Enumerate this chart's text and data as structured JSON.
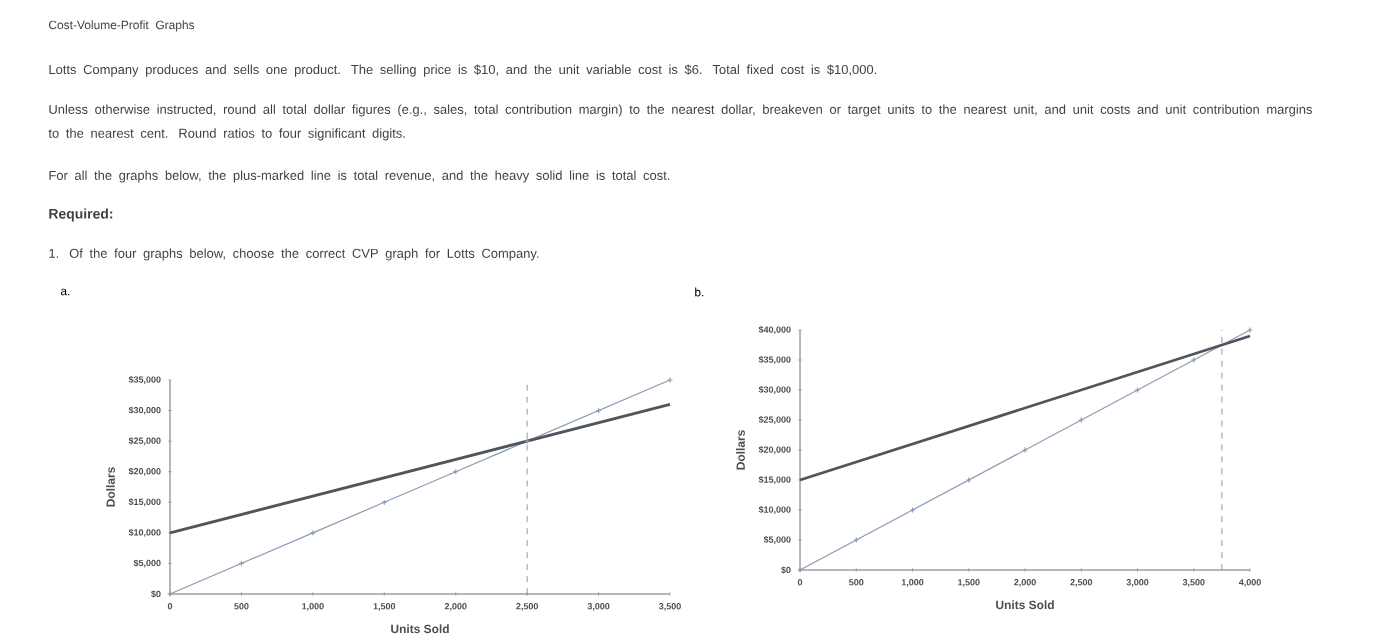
{
  "chart_data": [
    {
      "type": "line",
      "title": "a.",
      "xlabel": "Units Sold",
      "ylabel": "Dollars",
      "annotations": [
        "Cost-Volume-Profit Graphs",
        "Lotts Company produces and sells one product. The selling price is $10, and the unit variable cost is $6. Total fixed cost is $10,000.",
        "Unless otherwise instructed, round all total dollar figures (e.g., sales, total contribution margin) to the nearest dollar, breakeven or target units to the nearest unit, and unit costs and unit contribution margins to the nearest cent. Round ratios to four significant digits.",
        "For all the graphs below, the plus-marked line is total revenue, and the heavy solid line is total cost.",
        "Required:",
        "1. Of the four graphs below, choose the correct CVP graph for Lotts Company."
      ],
      "xlim": [
        0,
        3500
      ],
      "ylim": [
        0,
        35000
      ],
      "xticks": [
        0,
        500,
        {
          "value": 1000,
          "label": "1,000"
        },
        {
          "value": 1500,
          "label": "1,500"
        },
        {
          "value": 2000,
          "label": "2,000"
        },
        {
          "value": 2500,
          "label": "2,500"
        },
        {
          "value": 3000,
          "label": "3,000"
        },
        {
          "value": 3500,
          "label": "3,500"
        }
      ],
      "yticks": [
        {
          "value": 0,
          "label": "$0"
        },
        {
          "value": 5000,
          "label": "$5,000"
        },
        {
          "value": 10000,
          "label": "$10,000"
        },
        {
          "value": 15000,
          "label": "$15,000"
        },
        {
          "value": 20000,
          "label": "$20,000"
        },
        {
          "value": 25000,
          "label": "$25,000"
        },
        {
          "value": 30000,
          "label": "$30,000"
        },
        {
          "value": 35000,
          "label": "$35,000"
        }
      ],
      "series": [
        {
          "color": "#8a9bb3",
          "marker": "cross",
          "x": [
            0,
            500,
            1000,
            1500,
            2000,
            2500,
            3000,
            3500
          ],
          "values": [
            0,
            5000,
            10000,
            15000,
            20000,
            25000,
            30000,
            35000
          ]
        },
        {
          "color": "#50555c",
          "marker": "none",
          "x": [
            0,
            3500
          ],
          "values": [
            10000,
            31000
          ]
        }
      ],
      "ref_lines": [
        {
          "axis": "x",
          "value": 2500,
          "line_style": "dashed",
          "color": "#8a9bb3"
        }
      ]
    },
    {
      "type": "line",
      "title": "b.",
      "xlabel": "Units Sold",
      "ylabel": "Dollars",
      "xlim": [
        0,
        4000
      ],
      "ylim": [
        0,
        40000
      ],
      "xticks": [
        0,
        500,
        {
          "value": 1000,
          "label": "1,000"
        },
        {
          "value": 1500,
          "label": "1,500"
        },
        {
          "value": 2000,
          "label": "2,000"
        },
        {
          "value": 2500,
          "label": "2,500"
        },
        {
          "value": 3000,
          "label": "3,000"
        },
        {
          "value": 3500,
          "label": "3,500"
        },
        {
          "value": 4000,
          "label": "4,000"
        }
      ],
      "yticks": [
        {
          "value": 0,
          "label": "$0"
        },
        {
          "value": 5000,
          "label": "$5,000"
        },
        {
          "value": 10000,
          "label": "$10,000"
        },
        {
          "value": 15000,
          "label": "$15,000"
        },
        {
          "value": 20000,
          "label": "$20,000"
        },
        {
          "value": 25000,
          "label": "$25,000"
        },
        {
          "value": 30000,
          "label": "$30,000"
        },
        {
          "value": 35000,
          "label": "$35,000"
        },
        {
          "value": 40000,
          "label": "$40,000"
        }
      ],
      "series": [
        {
          "color": "#8a9bb3",
          "marker": "cross",
          "x": [
            0,
            500,
            1000,
            1500,
            2000,
            2500,
            3000,
            3500,
            4000
          ],
          "values": [
            0,
            5000,
            10000,
            15000,
            20000,
            25000,
            30000,
            35000,
            40000
          ]
        },
        {
          "color": "#50555c",
          "marker": "none",
          "x": [
            0,
            4000
          ],
          "values": [
            15000,
            39000
          ]
        }
      ],
      "ref_lines": [
        {
          "axis": "x",
          "value": 3750,
          "line_style": "dashed",
          "color": "#8a9bb3"
        }
      ]
    }
  ]
}
